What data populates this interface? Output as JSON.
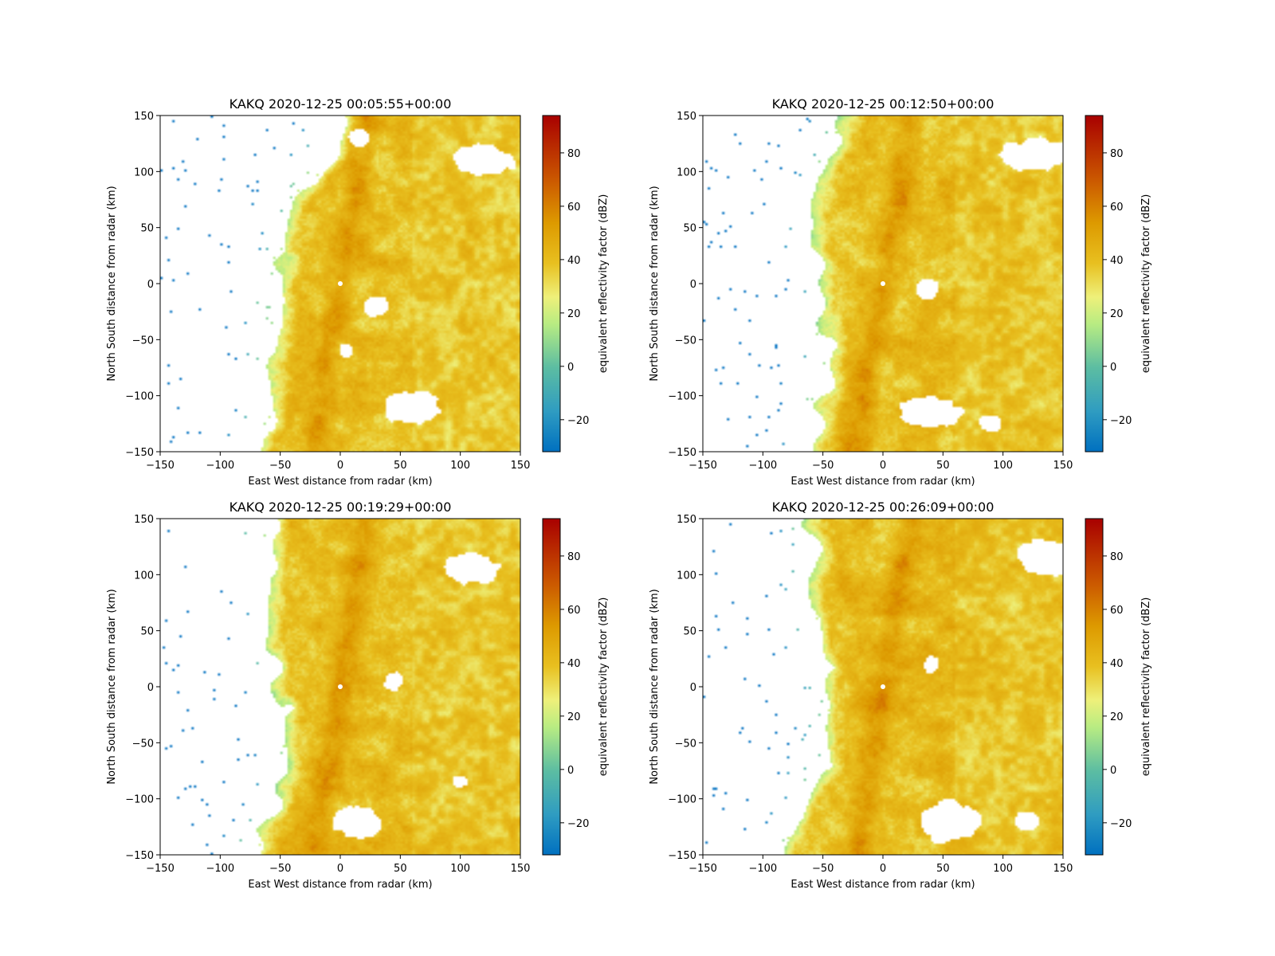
{
  "chart_data": [
    {
      "type": "heatmap",
      "title": "KAKQ 2020-12-25 00:05:55+00:00",
      "xlabel": "East West distance from radar (km)",
      "ylabel": "North South distance from radar (km)",
      "xlim": [
        -150,
        150
      ],
      "ylim": [
        -150,
        150
      ],
      "xticks": [
        -150,
        -100,
        -50,
        0,
        50,
        100,
        150
      ],
      "yticks": [
        -150,
        -100,
        -50,
        0,
        50,
        100,
        150
      ],
      "colorbar": {
        "label": "equivalent reflectivity factor (dBZ)",
        "range": [
          -32,
          94
        ],
        "ticks": [
          -20,
          0,
          20,
          40,
          60,
          80
        ]
      },
      "field": {
        "west_edge_km": [
          0,
          -5,
          -30,
          -40,
          -45,
          -50,
          -55,
          -55,
          -60,
          -62,
          -70
        ],
        "edge_y_km": [
          150,
          120,
          90,
          60,
          30,
          0,
          -30,
          -60,
          -90,
          -120,
          -150
        ],
        "core_dBZ": 40,
        "clear_east_dBZ": 32,
        "spine_dBZ": 52,
        "clear_holes": [
          {
            "x": 120,
            "y": 110,
            "r": 24,
            "ry": 14
          },
          {
            "x": 30,
            "y": -20,
            "r": 10,
            "ry": 10
          },
          {
            "x": 60,
            "y": -110,
            "r": 25,
            "ry": 14
          },
          {
            "x": 15,
            "y": 130,
            "r": 8,
            "ry": 8
          },
          {
            "x": 5,
            "y": -60,
            "r": 5,
            "ry": 7
          }
        ]
      }
    },
    {
      "type": "heatmap",
      "title": "KAKQ 2020-12-25 00:12:50+00:00",
      "xlabel": "East West distance from radar (km)",
      "ylabel": "North South distance from radar (km)",
      "xlim": [
        -150,
        150
      ],
      "ylim": [
        -150,
        150
      ],
      "xticks": [
        -150,
        -100,
        -50,
        0,
        50,
        100,
        150
      ],
      "yticks": [
        -150,
        -100,
        -50,
        0,
        50,
        100,
        150
      ],
      "colorbar": {
        "label": "equivalent reflectivity factor (dBZ)",
        "range": [
          -32,
          94
        ],
        "ticks": [
          -20,
          0,
          20,
          40,
          60,
          80
        ]
      },
      "field": {
        "west_edge_km": [
          -30,
          -40,
          -50,
          -55,
          -55,
          -45,
          -45,
          -45,
          -50,
          -55,
          -60
        ],
        "edge_y_km": [
          150,
          120,
          90,
          60,
          30,
          0,
          -30,
          -60,
          -90,
          -120,
          -150
        ],
        "core_dBZ": 40,
        "clear_east_dBZ": 32,
        "spine_dBZ": 52,
        "clear_holes": [
          {
            "x": 125,
            "y": 115,
            "r": 26,
            "ry": 14
          },
          {
            "x": 37,
            "y": -5,
            "r": 9,
            "ry": 9
          },
          {
            "x": 40,
            "y": -115,
            "r": 26,
            "ry": 14
          },
          {
            "x": 90,
            "y": -125,
            "r": 10,
            "ry": 8
          }
        ]
      }
    },
    {
      "type": "heatmap",
      "title": "KAKQ 2020-12-25 00:19:29+00:00",
      "xlabel": "East West distance from radar (km)",
      "ylabel": "North South distance from radar (km)",
      "xlim": [
        -150,
        150
      ],
      "ylim": [
        -150,
        150
      ],
      "xticks": [
        -150,
        -100,
        -50,
        0,
        50,
        100,
        150
      ],
      "yticks": [
        -150,
        -100,
        -50,
        0,
        50,
        100,
        150
      ],
      "colorbar": {
        "label": "equivalent reflectivity factor (dBZ)",
        "range": [
          -32,
          94
        ],
        "ticks": [
          -20,
          0,
          20,
          40,
          60,
          80
        ]
      },
      "field": {
        "west_edge_km": [
          -60,
          -60,
          -58,
          -55,
          -55,
          -50,
          -45,
          -40,
          -45,
          -60,
          -75
        ],
        "edge_y_km": [
          150,
          120,
          90,
          60,
          30,
          0,
          -30,
          -60,
          -90,
          -120,
          -150
        ],
        "core_dBZ": 40,
        "clear_east_dBZ": 32,
        "spine_dBZ": 52,
        "clear_holes": [
          {
            "x": 110,
            "y": 105,
            "r": 22,
            "ry": 14
          },
          {
            "x": 45,
            "y": 5,
            "r": 8,
            "ry": 9
          },
          {
            "x": 15,
            "y": -120,
            "r": 20,
            "ry": 14
          },
          {
            "x": 100,
            "y": -85,
            "r": 6,
            "ry": 6
          }
        ]
      }
    },
    {
      "type": "heatmap",
      "title": "KAKQ 2020-12-25 00:26:09+00:00",
      "xlabel": "East West distance from radar (km)",
      "ylabel": "North South distance from radar (km)",
      "xlim": [
        -150,
        150
      ],
      "ylim": [
        -150,
        150
      ],
      "xticks": [
        -150,
        -100,
        -50,
        0,
        50,
        100,
        150
      ],
      "yticks": [
        -150,
        -100,
        -50,
        0,
        50,
        100,
        150
      ],
      "colorbar": {
        "label": "equivalent reflectivity factor (dBZ)",
        "range": [
          -32,
          94
        ],
        "ticks": [
          -20,
          0,
          20,
          40,
          60,
          80
        ]
      },
      "field": {
        "west_edge_km": [
          -60,
          -55,
          -60,
          -55,
          -55,
          -45,
          -45,
          -45,
          -55,
          -70,
          -80
        ],
        "edge_y_km": [
          150,
          120,
          90,
          60,
          30,
          0,
          -30,
          -60,
          -90,
          -120,
          -150
        ],
        "core_dBZ": 40,
        "clear_east_dBZ": 32,
        "spine_dBZ": 52,
        "clear_holes": [
          {
            "x": 135,
            "y": 115,
            "r": 22,
            "ry": 16
          },
          {
            "x": 40,
            "y": 20,
            "r": 6,
            "ry": 8
          },
          {
            "x": 55,
            "y": -120,
            "r": 25,
            "ry": 18
          },
          {
            "x": 120,
            "y": -120,
            "r": 10,
            "ry": 8
          }
        ]
      }
    }
  ]
}
